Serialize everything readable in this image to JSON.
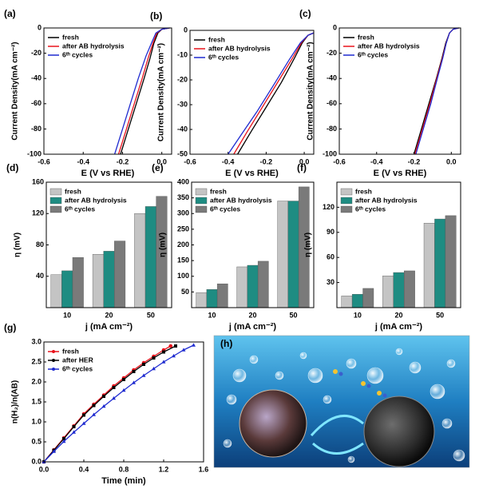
{
  "chart_data": [
    {
      "type": "line",
      "panel_label": "(a)",
      "xlabel": "E (V vs RHE)",
      "ylabel": "Current Density(mA cm⁻²)",
      "xlim": [
        -0.6,
        0.05
      ],
      "xticks": [
        -0.6,
        -0.4,
        -0.2,
        {
          "value": 0,
          "label": "0.0"
        }
      ],
      "ylim": [
        -100,
        0
      ],
      "yticks": [
        -100,
        -80,
        -60,
        -40,
        -20,
        0
      ],
      "legend": "upper left",
      "series": [
        {
          "name": "fresh",
          "color": "#000000",
          "x": [
            -0.21,
            -0.17,
            -0.13,
            -0.09,
            -0.06,
            -0.04,
            -0.02,
            0.0,
            0.04
          ],
          "values": [
            -100,
            -80,
            -60,
            -40,
            -24,
            -12,
            -4,
            -1,
            0
          ]
        },
        {
          "name": "after AB hydrolysis",
          "color": "#e8121b",
          "x": [
            -0.22,
            -0.18,
            -0.14,
            -0.1,
            -0.07,
            -0.045,
            -0.025,
            0.0,
            0.04
          ],
          "values": [
            -100,
            -80,
            -60,
            -40,
            -24,
            -12,
            -4,
            -1,
            0
          ]
        },
        {
          "name": "6ᵗʰ cycles",
          "color": "#1f2bd0",
          "x": [
            -0.24,
            -0.2,
            -0.16,
            -0.12,
            -0.08,
            -0.05,
            -0.03,
            0.0,
            0.04
          ],
          "values": [
            -100,
            -80,
            -60,
            -40,
            -22,
            -11,
            -4,
            -1,
            0
          ]
        }
      ]
    },
    {
      "type": "line",
      "panel_label": "(b)",
      "xlabel": "E (V vs RHE)",
      "ylabel": "Current Density(mA cm⁻²)",
      "xlim": [
        -0.6,
        0.05
      ],
      "xticks": [
        -0.6,
        -0.4,
        -0.2,
        {
          "value": 0,
          "label": "0.0"
        }
      ],
      "ylim": [
        -50,
        0
      ],
      "yticks": [
        -50,
        -40,
        -30,
        -20,
        -10,
        0
      ],
      "legend": "upper left",
      "series": [
        {
          "name": "fresh",
          "color": "#000000",
          "x": [
            -0.35,
            -0.28,
            -0.2,
            -0.12,
            -0.05,
            -0.01,
            0.02,
            0.05
          ],
          "values": [
            -50,
            -41,
            -31,
            -21,
            -11,
            -5,
            -2,
            -1
          ]
        },
        {
          "name": "after AB hydrolysis",
          "color": "#e8121b",
          "x": [
            -0.37,
            -0.3,
            -0.22,
            -0.14,
            -0.06,
            -0.015,
            0.02,
            0.05
          ],
          "values": [
            -50,
            -41,
            -31,
            -21,
            -11,
            -5,
            -2,
            -1
          ]
        },
        {
          "name": "6ᵗʰ cycles",
          "color": "#1f2bd0",
          "x": [
            -0.4,
            -0.33,
            -0.25,
            -0.16,
            -0.08,
            -0.02,
            0.02,
            0.05
          ],
          "values": [
            -50,
            -42,
            -33,
            -22,
            -12,
            -5,
            -2,
            -1
          ]
        }
      ]
    },
    {
      "type": "line",
      "panel_label": "(c)",
      "xlabel": "E (V vs RHE)",
      "ylabel": "Current Density(mA cm⁻²)",
      "xlim": [
        -0.6,
        0.05
      ],
      "xticks": [
        -0.6,
        -0.4,
        -0.2,
        {
          "value": 0,
          "label": "0.0"
        }
      ],
      "ylim": [
        -100,
        0
      ],
      "yticks": [
        -100,
        -80,
        -60,
        -40,
        -20,
        0
      ],
      "legend": "upper left",
      "series": [
        {
          "name": "fresh",
          "color": "#000000",
          "x": [
            -0.2,
            -0.16,
            -0.12,
            -0.08,
            -0.05,
            -0.03,
            -0.01,
            0.01,
            0.04
          ],
          "values": [
            -100,
            -80,
            -60,
            -40,
            -24,
            -12,
            -4,
            -1,
            0
          ]
        },
        {
          "name": "after AB hydrolysis",
          "color": "#e8121b",
          "x": [
            -0.195,
            -0.155,
            -0.115,
            -0.078,
            -0.048,
            -0.028,
            -0.01,
            0.01,
            0.04
          ],
          "values": [
            -100,
            -80,
            -60,
            -40,
            -24,
            -12,
            -4,
            -1,
            0
          ]
        },
        {
          "name": "6ᵗʰ cycles",
          "color": "#1f2bd0",
          "x": [
            -0.19,
            -0.15,
            -0.11,
            -0.075,
            -0.046,
            -0.027,
            -0.01,
            0.01,
            0.04
          ],
          "values": [
            -100,
            -80,
            -60,
            -40,
            -24,
            -12,
            -4,
            -1,
            0
          ]
        }
      ]
    },
    {
      "type": "bar",
      "panel_label": "(d)",
      "xlabel": "j (mA cm⁻²)",
      "ylabel": "η (mV)",
      "categories": [
        "10",
        "20",
        "50"
      ],
      "ylim": [
        0,
        160
      ],
      "yticks": [
        40,
        80,
        120,
        160
      ],
      "legend": "upper left",
      "series": [
        {
          "name": "fresh",
          "color": "#c4c4c4",
          "values": [
            42,
            68,
            120
          ]
        },
        {
          "name": "after AB hydrolysis",
          "color": "#1e8c82",
          "values": [
            47,
            72,
            129
          ]
        },
        {
          "name": "6ᵗʰ cycles",
          "color": "#7a7a7a",
          "values": [
            64,
            85,
            142
          ]
        }
      ]
    },
    {
      "type": "bar",
      "panel_label": "(e)",
      "xlabel": "j (mA cm⁻²)",
      "ylabel": "η (mV)",
      "categories": [
        "10",
        "20",
        "50"
      ],
      "ylim": [
        0,
        400
      ],
      "yticks": [
        50,
        100,
        150,
        200,
        250,
        300,
        350,
        400
      ],
      "legend": "upper left",
      "series": [
        {
          "name": "fresh",
          "color": "#c4c4c4",
          "values": [
            48,
            130,
            340
          ]
        },
        {
          "name": "after AB hydrolysis",
          "color": "#1e8c82",
          "values": [
            58,
            135,
            340
          ]
        },
        {
          "name": "6ᵗʰ cycles",
          "color": "#7a7a7a",
          "values": [
            76,
            148,
            385
          ]
        }
      ]
    },
    {
      "type": "bar",
      "panel_label": "(f)",
      "xlabel": "j (mA cm⁻²)",
      "ylabel": "η (mV)",
      "categories": [
        "10",
        "20",
        "50"
      ],
      "ylim": [
        0,
        150
      ],
      "yticks": [
        30,
        60,
        90,
        120
      ],
      "legend": "upper left",
      "series": [
        {
          "name": "fresh",
          "color": "#c4c4c4",
          "values": [
            14,
            38,
            101
          ]
        },
        {
          "name": "after AB hydrolysis",
          "color": "#1e8c82",
          "values": [
            16,
            42,
            106
          ]
        },
        {
          "name": "6ᵗʰ cycles",
          "color": "#7a7a7a",
          "values": [
            23,
            44,
            110
          ]
        }
      ]
    },
    {
      "type": "line_marker",
      "panel_label": "(g)",
      "xlabel": "Time (min)",
      "ylabel": "n(H₂)/n(AB)",
      "xlim": [
        0,
        1.6
      ],
      "xticks": [
        {
          "value": 0,
          "label": "0.0"
        },
        0.4,
        0.8,
        1.2,
        1.6
      ],
      "ylim": [
        0,
        3
      ],
      "yticks": [
        {
          "value": 0,
          "label": "0.0"
        },
        0.5,
        {
          "value": 1,
          "label": "1.0"
        },
        1.5,
        {
          "value": 2,
          "label": "2.0"
        },
        2.5,
        {
          "value": 3,
          "label": "3.0"
        }
      ],
      "legend": "upper left",
      "series": [
        {
          "name": "fresh",
          "color": "#e8121b",
          "marker": "circle",
          "x": [
            0,
            0.1,
            0.2,
            0.3,
            0.4,
            0.5,
            0.6,
            0.7,
            0.8,
            0.9,
            1.0,
            1.1,
            1.2,
            1.27
          ],
          "values": [
            0,
            0.3,
            0.6,
            0.9,
            1.2,
            1.44,
            1.67,
            1.9,
            2.1,
            2.3,
            2.48,
            2.64,
            2.8,
            2.9
          ]
        },
        {
          "name": "after HER",
          "color": "#000000",
          "marker": "square",
          "x": [
            0,
            0.1,
            0.2,
            0.3,
            0.4,
            0.5,
            0.6,
            0.7,
            0.8,
            0.9,
            1.0,
            1.1,
            1.2,
            1.32
          ],
          "values": [
            0,
            0.29,
            0.58,
            0.88,
            1.17,
            1.41,
            1.64,
            1.86,
            2.06,
            2.26,
            2.44,
            2.6,
            2.75,
            2.9
          ]
        },
        {
          "name": "6ᵗʰ cycles",
          "color": "#1f2bd0",
          "marker": "triangle",
          "x": [
            0,
            0.1,
            0.2,
            0.3,
            0.4,
            0.5,
            0.6,
            0.7,
            0.8,
            0.9,
            1.0,
            1.1,
            1.2,
            1.3,
            1.4,
            1.5
          ],
          "values": [
            0,
            0.26,
            0.51,
            0.74,
            0.96,
            1.18,
            1.39,
            1.59,
            1.79,
            1.98,
            2.16,
            2.33,
            2.5,
            2.65,
            2.8,
            2.92
          ]
        }
      ]
    }
  ],
  "image_panel": {
    "label": "(h)"
  }
}
